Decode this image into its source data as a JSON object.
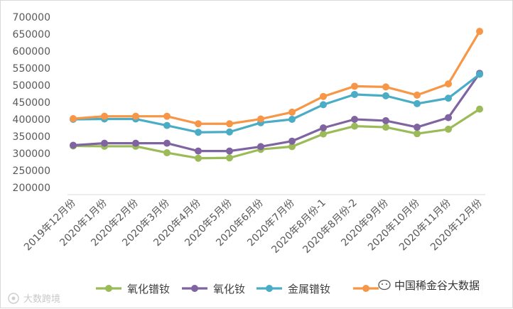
{
  "chart_data": {
    "type": "line",
    "title": "",
    "xlabel": "",
    "ylabel": "",
    "ylim": [
      200000,
      700000
    ],
    "ytick_step": 50000,
    "y_ticks": [
      "700000",
      "650000",
      "600000",
      "550000",
      "500000",
      "450000",
      "400000",
      "350000",
      "300000",
      "250000",
      "200000"
    ],
    "grid": false,
    "legend_position": "bottom",
    "categories": [
      "2019年12月份",
      "2020年1月份",
      "2020年2月份",
      "2020年3月份",
      "2020年4月份",
      "2020年5月份",
      "2020年6月份",
      "2020年7月份",
      "2020年8月份-1",
      "2020年8月份-2",
      "2020年9月份",
      "2020年10月份",
      "2020年11月份",
      "2020年12月份"
    ],
    "series": [
      {
        "name": "氧化镨钕",
        "color": "#9bbb59",
        "values": [
          322000,
          321000,
          321000,
          302000,
          286000,
          287000,
          312000,
          320000,
          357000,
          380000,
          377000,
          358000,
          371000,
          430000
        ]
      },
      {
        "name": "氧化钕",
        "color": "#8064a2",
        "values": [
          324000,
          330000,
          330000,
          330000,
          307000,
          307000,
          320000,
          336000,
          375000,
          400000,
          396000,
          377000,
          405000,
          535000
        ]
      },
      {
        "name": "金属镨钕",
        "color": "#4bacc6",
        "values": [
          400000,
          401000,
          401000,
          382000,
          362000,
          363000,
          390000,
          400000,
          443000,
          473000,
          469000,
          446000,
          462000,
          532000
        ]
      },
      {
        "name": "",
        "color": "#f79646",
        "values": [
          402000,
          409000,
          409000,
          409000,
          387000,
          387000,
          401000,
          421000,
          467000,
          497000,
          495000,
          471000,
          504000,
          658000
        ]
      }
    ]
  },
  "watermark": {
    "text": "大数跨境"
  },
  "source": {
    "text": "中国稀金谷大数据"
  }
}
